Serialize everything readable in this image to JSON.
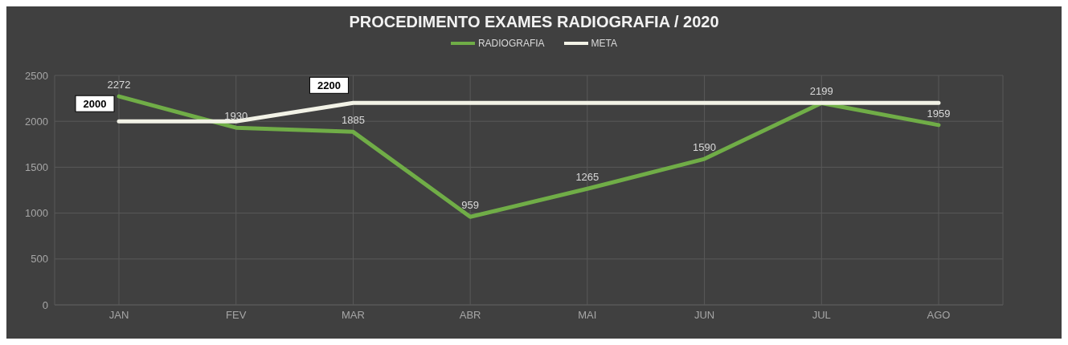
{
  "chart_data": {
    "type": "line",
    "title": "PROCEDIMENTO EXAMES RADIOGRAFIA / 2020",
    "categories": [
      "JAN",
      "FEV",
      "MAR",
      "ABR",
      "MAI",
      "JUN",
      "JUL",
      "AGO"
    ],
    "series": [
      {
        "name": "RADIOGRAFIA",
        "color": "#70ad47",
        "values": [
          2272,
          1930,
          1885,
          959,
          1265,
          1590,
          2199,
          1959
        ],
        "value_labels": [
          "2272",
          "1930",
          "1885",
          "959",
          "1265",
          "1590",
          "2199",
          "1959"
        ]
      },
      {
        "name": "META",
        "color": "#f2f2e6",
        "values": [
          2000,
          2000,
          2200,
          2200,
          2200,
          2200,
          2200,
          2200
        ],
        "value_labels": [
          "2000",
          null,
          "2200",
          null,
          null,
          null,
          null,
          null
        ]
      }
    ],
    "ylim": [
      0,
      2500
    ],
    "yticks": [
      0,
      500,
      1000,
      1500,
      2000,
      2500
    ],
    "grid": true,
    "legend": "top",
    "marker": "none",
    "line_style": "solid"
  }
}
